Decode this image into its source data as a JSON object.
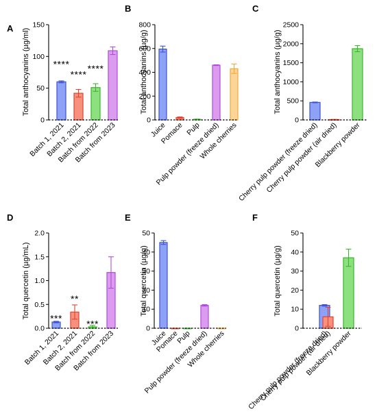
{
  "colors": {
    "blue": {
      "fill": "#8da2f7",
      "stroke": "#3d52d5"
    },
    "red": {
      "fill": "#f7917e",
      "stroke": "#e0442e"
    },
    "green": {
      "fill": "#8de07e",
      "stroke": "#3bb52c"
    },
    "purple": {
      "fill": "#db9cf0",
      "stroke": "#b04bd8"
    },
    "orange": {
      "fill": "#fcd496",
      "stroke": "#f3a83a"
    }
  },
  "chart_data": [
    {
      "panel": "A",
      "type": "bar",
      "ylabel": "Total anthocyanins (µg/ml)",
      "ylim": [
        0,
        150
      ],
      "yticks": [
        0,
        50,
        100,
        150
      ],
      "categories": [
        "Batch 1, 2021",
        "Batch 2, 2021",
        "Batch from 2022",
        "Batch from 2023"
      ],
      "values": [
        60,
        42,
        51,
        109
      ],
      "errors": [
        1.5,
        6,
        6,
        6
      ],
      "colors": [
        "blue",
        "red",
        "green",
        "purple"
      ],
      "annotations": [
        {
          "category": 0,
          "text": "****",
          "y": 88
        },
        {
          "category": 1,
          "text": "****",
          "y": 72
        },
        {
          "category": 2,
          "text": "****",
          "y": 81
        }
      ]
    },
    {
      "panel": "B",
      "type": "bar",
      "ylabel": "Total anthocyanins (µg/g)",
      "ylim": [
        0,
        800
      ],
      "yticks": [
        0,
        200,
        400,
        600,
        800
      ],
      "categories": [
        "Juice",
        "Pomace",
        "Pulp",
        "Pulp powder (freeze dried)",
        "Whole cherries"
      ],
      "values": [
        595,
        20,
        5,
        460,
        430
      ],
      "errors": [
        25,
        5,
        2,
        3,
        40
      ],
      "colors": [
        "blue",
        "red",
        "green",
        "purple",
        "orange"
      ],
      "annotations": []
    },
    {
      "panel": "C",
      "type": "bar",
      "ylabel": "Total anthocyanins (µg/g)",
      "ylim": [
        0,
        2500
      ],
      "yticks": [
        0,
        500,
        1000,
        1500,
        2000,
        2500
      ],
      "categories": [
        "Cherry pulp powder (freeze dried)",
        "Cherry pulp powder (air dried)",
        "Blackberry powder"
      ],
      "values": [
        460,
        10,
        1870
      ],
      "errors": [
        10,
        3,
        80
      ],
      "colors": [
        "blue",
        "red",
        "green"
      ],
      "annotations": []
    },
    {
      "panel": "D",
      "type": "bar",
      "ylabel": "Total quercetin (µg/mL)",
      "ylim": [
        0,
        2.0
      ],
      "yticks": [
        "0.0",
        "0.5",
        "1.0",
        "1.5",
        "2.0"
      ],
      "categories": [
        "Batch 1, 2021",
        "Batch 2, 2021",
        "Batch from 2022",
        "Batch from 2023"
      ],
      "values": [
        0.13,
        0.34,
        0.03,
        1.17
      ],
      "errors": [
        0.015,
        0.15,
        0.03,
        0.33
      ],
      "colors": [
        "blue",
        "red",
        "green",
        "purple"
      ],
      "annotations": [
        {
          "category": 0,
          "text": "***",
          "y": 0.21
        },
        {
          "category": 1,
          "text": "**",
          "y": 0.62
        },
        {
          "category": 2,
          "text": "***",
          "y": 0.09
        }
      ]
    },
    {
      "panel": "E",
      "type": "bar",
      "ylabel": "Total quercetin (µg/g)",
      "ylim": [
        0,
        50
      ],
      "yticks": [
        0,
        10,
        20,
        30,
        40,
        50
      ],
      "categories": [
        "Juice",
        "Pomace",
        "Pulp",
        "Pulp powder (freeze dried)",
        "Whole cherries"
      ],
      "values": [
        45,
        0,
        0,
        12,
        0
      ],
      "errors": [
        1,
        0,
        0,
        0.4,
        0
      ],
      "colors": [
        "blue",
        "red",
        "green",
        "purple",
        "orange"
      ],
      "annotations": []
    },
    {
      "panel": "F",
      "type": "bar",
      "ylabel": "Total quercetin (µg/g)",
      "ylim": [
        0,
        50
      ],
      "yticks": [
        0,
        10,
        20,
        30,
        40,
        50
      ],
      "categories": [
        "Cherry pulp powder (freeze dried)",
        "Cherry pulp powder (air dried)",
        "Blackberry powder"
      ],
      "values": [
        12,
        6,
        37
      ],
      "errors": [
        0.4,
        5,
        4.5
      ],
      "colors": [
        "blue",
        "red",
        "green"
      ],
      "annotations": []
    }
  ]
}
